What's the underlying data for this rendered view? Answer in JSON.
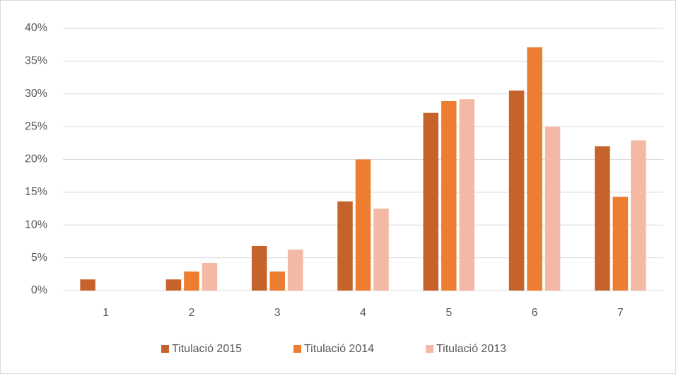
{
  "chart_data": {
    "type": "bar",
    "categories": [
      "1",
      "2",
      "3",
      "4",
      "5",
      "6",
      "7"
    ],
    "series": [
      {
        "name": "Titulació 2015",
        "color": "#c5632a",
        "values": [
          1.7,
          1.7,
          6.8,
          13.6,
          27.1,
          30.5,
          22.0
        ]
      },
      {
        "name": "Titulació 2014",
        "color": "#ed7d31",
        "values": [
          0,
          2.9,
          2.9,
          20.0,
          28.9,
          37.1,
          14.3
        ]
      },
      {
        "name": "Titulació 2013",
        "color": "#f4b9a4",
        "values": [
          0,
          4.2,
          6.25,
          12.5,
          29.2,
          25.0,
          22.9
        ]
      }
    ],
    "ylim": [
      0,
      40
    ],
    "yticks": [
      {
        "value": 0,
        "label": "0%"
      },
      {
        "value": 5,
        "label": "5%"
      },
      {
        "value": 10,
        "label": "10%"
      },
      {
        "value": 15,
        "label": "15%"
      },
      {
        "value": 20,
        "label": "20%"
      },
      {
        "value": 25,
        "label": "25%"
      },
      {
        "value": 30,
        "label": "30%"
      },
      {
        "value": 35,
        "label": "35%"
      },
      {
        "value": 40,
        "label": "40%"
      }
    ],
    "grid": true,
    "legend": "bottom"
  }
}
